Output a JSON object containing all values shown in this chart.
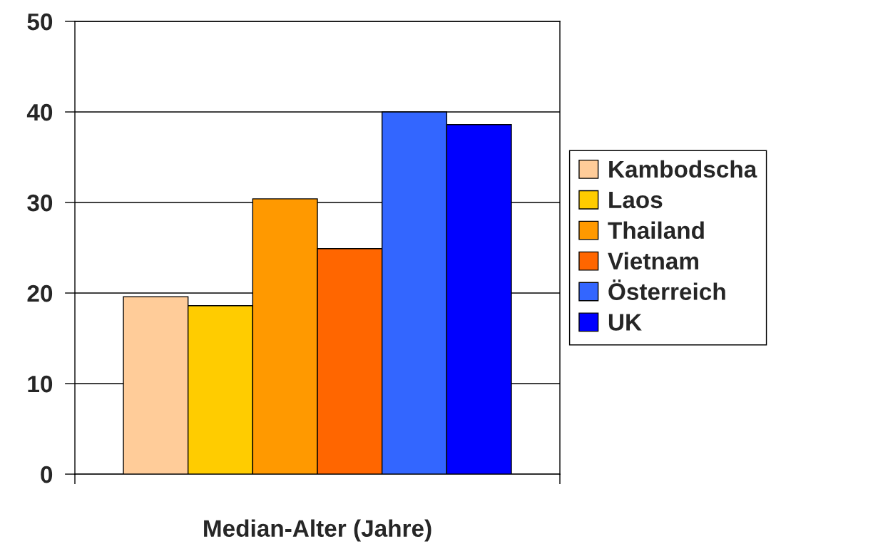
{
  "chart_data": {
    "type": "bar",
    "categories": [
      "Median-Alter (Jahre)"
    ],
    "series": [
      {
        "name": "Kambodscha",
        "color": "#ffcc99",
        "values": [
          19.6
        ]
      },
      {
        "name": "Laos",
        "color": "#ffcc00",
        "values": [
          18.6
        ]
      },
      {
        "name": "Thailand",
        "color": "#ff9900",
        "values": [
          30.4
        ]
      },
      {
        "name": "Vietnam",
        "color": "#ff6600",
        "values": [
          24.9
        ]
      },
      {
        "name": "Österreich",
        "color": "#3366ff",
        "values": [
          40.0
        ]
      },
      {
        "name": "UK",
        "color": "#0000ff",
        "values": [
          38.6
        ]
      }
    ],
    "ylim": [
      0,
      50
    ],
    "yticks": [
      0,
      10,
      20,
      30,
      40,
      50
    ],
    "grid": "y",
    "legend": "right"
  }
}
